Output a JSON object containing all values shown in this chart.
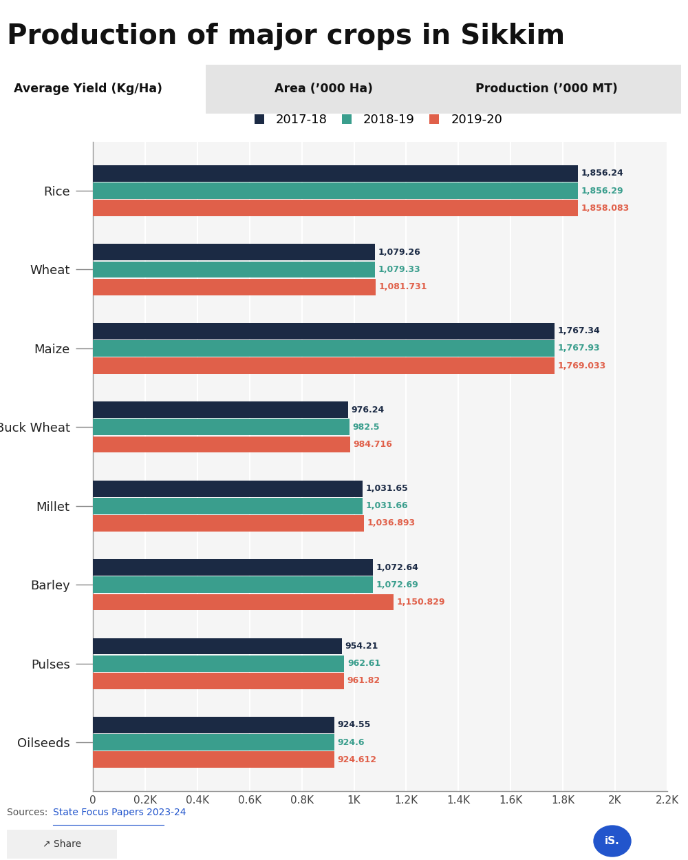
{
  "title": "Production of major crops in Sikkim",
  "subtitle_cols": [
    "Average Yield (Kg/Ha)",
    "Area (’000 Ha)",
    "Production (’000 MT)"
  ],
  "categories": [
    "Rice",
    "Wheat",
    "Maize",
    "Buck Wheat",
    "Millet",
    "Barley",
    "Pulses",
    "Oilseeds"
  ],
  "years": [
    "2017-18",
    "2018-19",
    "2019-20"
  ],
  "colors": [
    "#1b2a44",
    "#3a9e8d",
    "#e0604a"
  ],
  "values": {
    "Rice": [
      1856.24,
      1856.29,
      1858.083
    ],
    "Wheat": [
      1079.26,
      1079.33,
      1081.731
    ],
    "Maize": [
      1767.34,
      1767.93,
      1769.033
    ],
    "Buck Wheat": [
      976.24,
      982.5,
      984.716
    ],
    "Millet": [
      1031.65,
      1031.66,
      1036.893
    ],
    "Barley": [
      1072.64,
      1072.69,
      1150.829
    ],
    "Pulses": [
      954.21,
      962.61,
      961.82
    ],
    "Oilseeds": [
      924.55,
      924.6,
      924.612
    ]
  },
  "value_labels": {
    "Rice": [
      "1,856.24",
      "1,856.29",
      "1,858.083"
    ],
    "Wheat": [
      "1,079.26",
      "1,079.33",
      "1,081.731"
    ],
    "Maize": [
      "1,767.34",
      "1,767.93",
      "1,769.033"
    ],
    "Buck Wheat": [
      "976.24",
      "982.5",
      "984.716"
    ],
    "Millet": [
      "1,031.65",
      "1,031.66",
      "1,036.893"
    ],
    "Barley": [
      "1,072.64",
      "1,072.69",
      "1,150.829"
    ],
    "Pulses": [
      "954.21",
      "962.61",
      "961.82"
    ],
    "Oilseeds": [
      "924.55",
      "924.6",
      "924.612"
    ]
  },
  "label_colors": [
    "#1b2a44",
    "#3a9e8d",
    "#e0604a"
  ],
  "xlim": [
    0,
    2200
  ],
  "xticks": [
    0,
    200,
    400,
    600,
    800,
    1000,
    1200,
    1400,
    1600,
    1800,
    2000,
    2200
  ],
  "xtick_labels": [
    "0",
    "0.2K",
    "0.4K",
    "0.6K",
    "0.8K",
    "1K",
    "1.2K",
    "1.4K",
    "1.6K",
    "1.8K",
    "2K",
    "2.2K"
  ],
  "source_plain": "Sources: ",
  "source_link": "State Focus Papers 2023-24",
  "bg_color": "#ffffff",
  "bar_height": 0.22,
  "subtitle_bg_white": "#ffffff",
  "subtitle_bg_gray": "#e4e4e4"
}
